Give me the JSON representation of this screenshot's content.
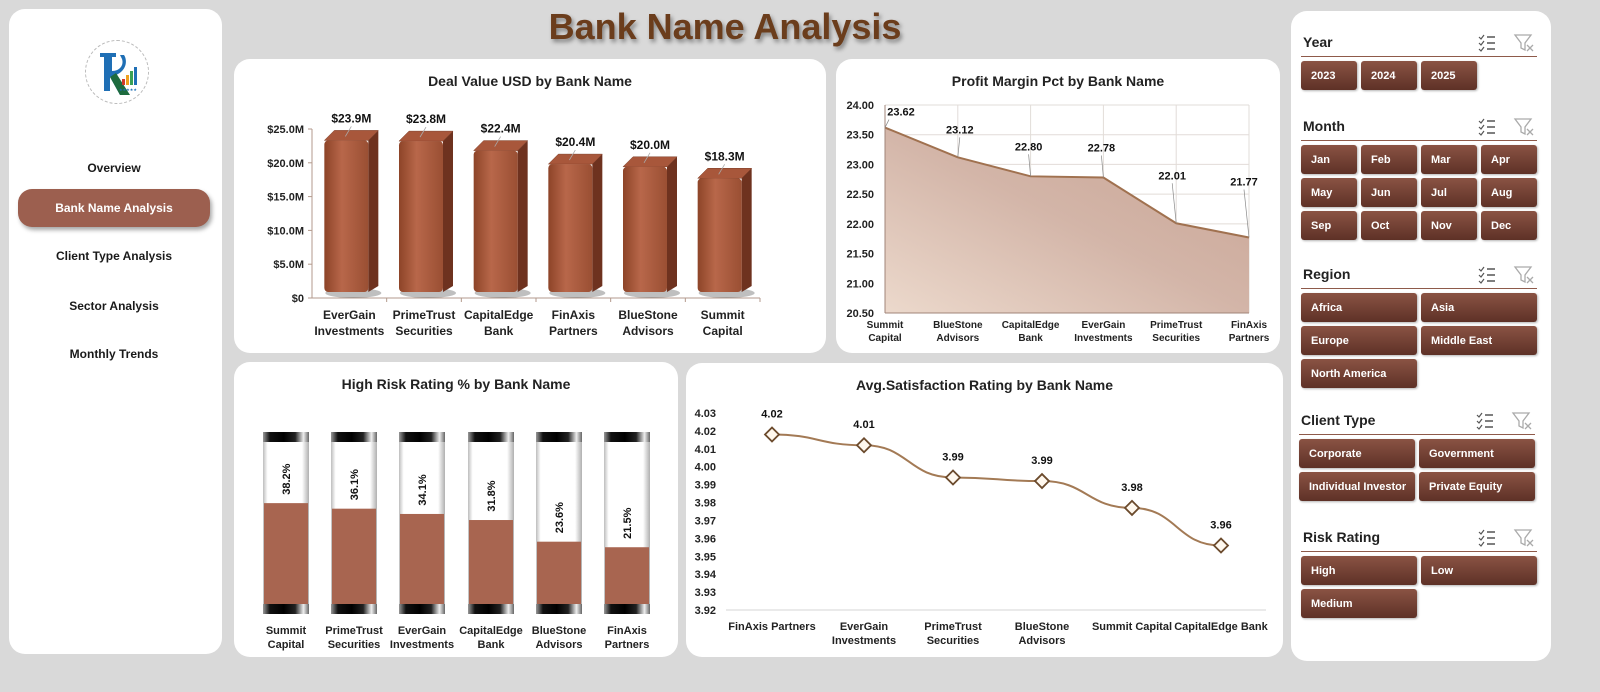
{
  "page": {
    "title": "Bank Name Analysis"
  },
  "sidebar": {
    "logo": "rk-logo",
    "items": [
      {
        "label": "Overview",
        "active": false
      },
      {
        "label": "Bank Name Analysis",
        "active": true
      },
      {
        "label": "Client Type Analysis",
        "active": false
      },
      {
        "label": "Sector Analysis",
        "active": false
      },
      {
        "label": "Monthly Trends",
        "active": false
      }
    ]
  },
  "slicers": {
    "year": {
      "title": "Year",
      "options": [
        "2023",
        "2024",
        "2025"
      ]
    },
    "month": {
      "title": "Month",
      "options": [
        "Jan",
        "Feb",
        "Mar",
        "Apr",
        "May",
        "Jun",
        "Jul",
        "Aug",
        "Sep",
        "Oct",
        "Nov",
        "Dec"
      ]
    },
    "region": {
      "title": "Region",
      "options": [
        "Africa",
        "Asia",
        "Europe",
        "Middle East",
        "North America"
      ]
    },
    "client_type": {
      "title": "Client Type",
      "options": [
        "Corporate",
        "Government",
        "Individual Investor",
        "Private Equity"
      ]
    },
    "risk_rating": {
      "title": "Risk Rating",
      "options": [
        "High",
        "Low",
        "Medium"
      ]
    },
    "icons": {
      "multi_select": "multi-select-icon",
      "clear_filter": "clear-filter-icon"
    }
  },
  "colors": {
    "accent": "#9c5f4f",
    "bar": "#a65a3f",
    "area_fill": "#d4b5a8",
    "area_line": "#a0714f",
    "risk_fill": "#a86550",
    "title": "#6b3d1c",
    "slicer_button": "#6f3e32"
  },
  "chart_data": [
    {
      "id": "deal_value",
      "type": "bar",
      "title": "Deal Value USD by Bank Name",
      "categories": [
        "EverGain Investments",
        "PrimeTrust Securities",
        "CapitalEdge Bank",
        "FinAxis Partners",
        "BlueStone Advisors",
        "Summit Capital"
      ],
      "category_lines": [
        [
          "EverGain",
          "Investments"
        ],
        [
          "PrimeTrust",
          "Securities"
        ],
        [
          "CapitalEdge",
          "Bank"
        ],
        [
          "FinAxis",
          "Partners"
        ],
        [
          "BlueStone",
          "Advisors"
        ],
        [
          "Summit",
          "Capital"
        ]
      ],
      "values": [
        23.9,
        23.8,
        22.4,
        20.4,
        20.0,
        18.3
      ],
      "labels": [
        "$23.9M",
        "$23.8M",
        "$22.4M",
        "$20.4M",
        "$20.0M",
        "$18.3M"
      ],
      "yticks": [
        "$0",
        "$5.0M",
        "$10.0M",
        "$15.0M",
        "$20.0M",
        "$25.0M"
      ],
      "ylim": [
        0,
        25
      ],
      "xlabel": "",
      "ylabel": "",
      "grid": false,
      "legend": "none"
    },
    {
      "id": "profit_margin",
      "type": "area",
      "title": "Profit Margin Pct by Bank Name",
      "categories": [
        "Summit Capital",
        "BlueStone Advisors",
        "CapitalEdge Bank",
        "EverGain Investments",
        "PrimeTrust Securities",
        "FinAxis Partners"
      ],
      "category_lines": [
        [
          "Summit",
          "Capital"
        ],
        [
          "BlueStone",
          "Advisors"
        ],
        [
          "CapitalEdge",
          "Bank"
        ],
        [
          "EverGain",
          "Investments"
        ],
        [
          "PrimeTrust",
          "Securities"
        ],
        [
          "FinAxis",
          "Partners"
        ]
      ],
      "values": [
        23.62,
        23.12,
        22.8,
        22.78,
        22.01,
        21.77
      ],
      "labels": [
        "23.62",
        "23.12",
        "22.80",
        "22.78",
        "22.01",
        "21.77"
      ],
      "yticks": [
        "20.50",
        "21.00",
        "21.50",
        "22.00",
        "22.50",
        "23.00",
        "23.50",
        "24.00"
      ],
      "ylim": [
        20.5,
        24.0
      ],
      "xlabel": "",
      "ylabel": "",
      "grid": true,
      "legend": "none"
    },
    {
      "id": "high_risk",
      "type": "bar",
      "title": "High Risk Rating % by Bank Name",
      "categories": [
        "Summit Capital",
        "PrimeTrust Securities",
        "EverGain Investments",
        "CapitalEdge Bank",
        "BlueStone Advisors",
        "FinAxis Partners"
      ],
      "category_lines": [
        [
          "Summit",
          "Capital"
        ],
        [
          "PrimeTrust",
          "Securities"
        ],
        [
          "EverGain",
          "Investments"
        ],
        [
          "CapitalEdge",
          "Bank"
        ],
        [
          "BlueStone",
          "Advisors"
        ],
        [
          "FinAxis",
          "Partners"
        ]
      ],
      "values": [
        38.2,
        36.1,
        34.1,
        31.8,
        23.6,
        21.5
      ],
      "labels": [
        "38.2%",
        "36.1%",
        "34.1%",
        "31.8%",
        "23.6%",
        "21.5%"
      ],
      "ylim": [
        0,
        100
      ],
      "xlabel": "",
      "ylabel": "",
      "grid": false,
      "legend": "none"
    },
    {
      "id": "satisfaction",
      "type": "line",
      "title": "Avg.Satisfaction Rating by Bank Name",
      "categories": [
        "FinAxis Partners",
        "EverGain Investments",
        "PrimeTrust Securities",
        "BlueStone Advisors",
        "Summit Capital",
        "CapitalEdge Bank"
      ],
      "category_lines": [
        [
          "FinAxis Partners"
        ],
        [
          "EverGain",
          "Investments"
        ],
        [
          "PrimeTrust",
          "Securities"
        ],
        [
          "BlueStone",
          "Advisors"
        ],
        [
          "Summit Capital"
        ],
        [
          "CapitalEdge Bank"
        ]
      ],
      "values": [
        4.018,
        4.012,
        3.994,
        3.992,
        3.977,
        3.956
      ],
      "labels": [
        "4.02",
        "4.01",
        "3.99",
        "3.99",
        "3.98",
        "3.96"
      ],
      "yticks": [
        "3.92",
        "3.93",
        "3.94",
        "3.95",
        "3.96",
        "3.97",
        "3.98",
        "3.99",
        "4.00",
        "4.01",
        "4.02",
        "4.03"
      ],
      "ylim": [
        3.92,
        4.03
      ],
      "xlabel": "",
      "ylabel": "",
      "grid": false,
      "legend": "none"
    }
  ]
}
